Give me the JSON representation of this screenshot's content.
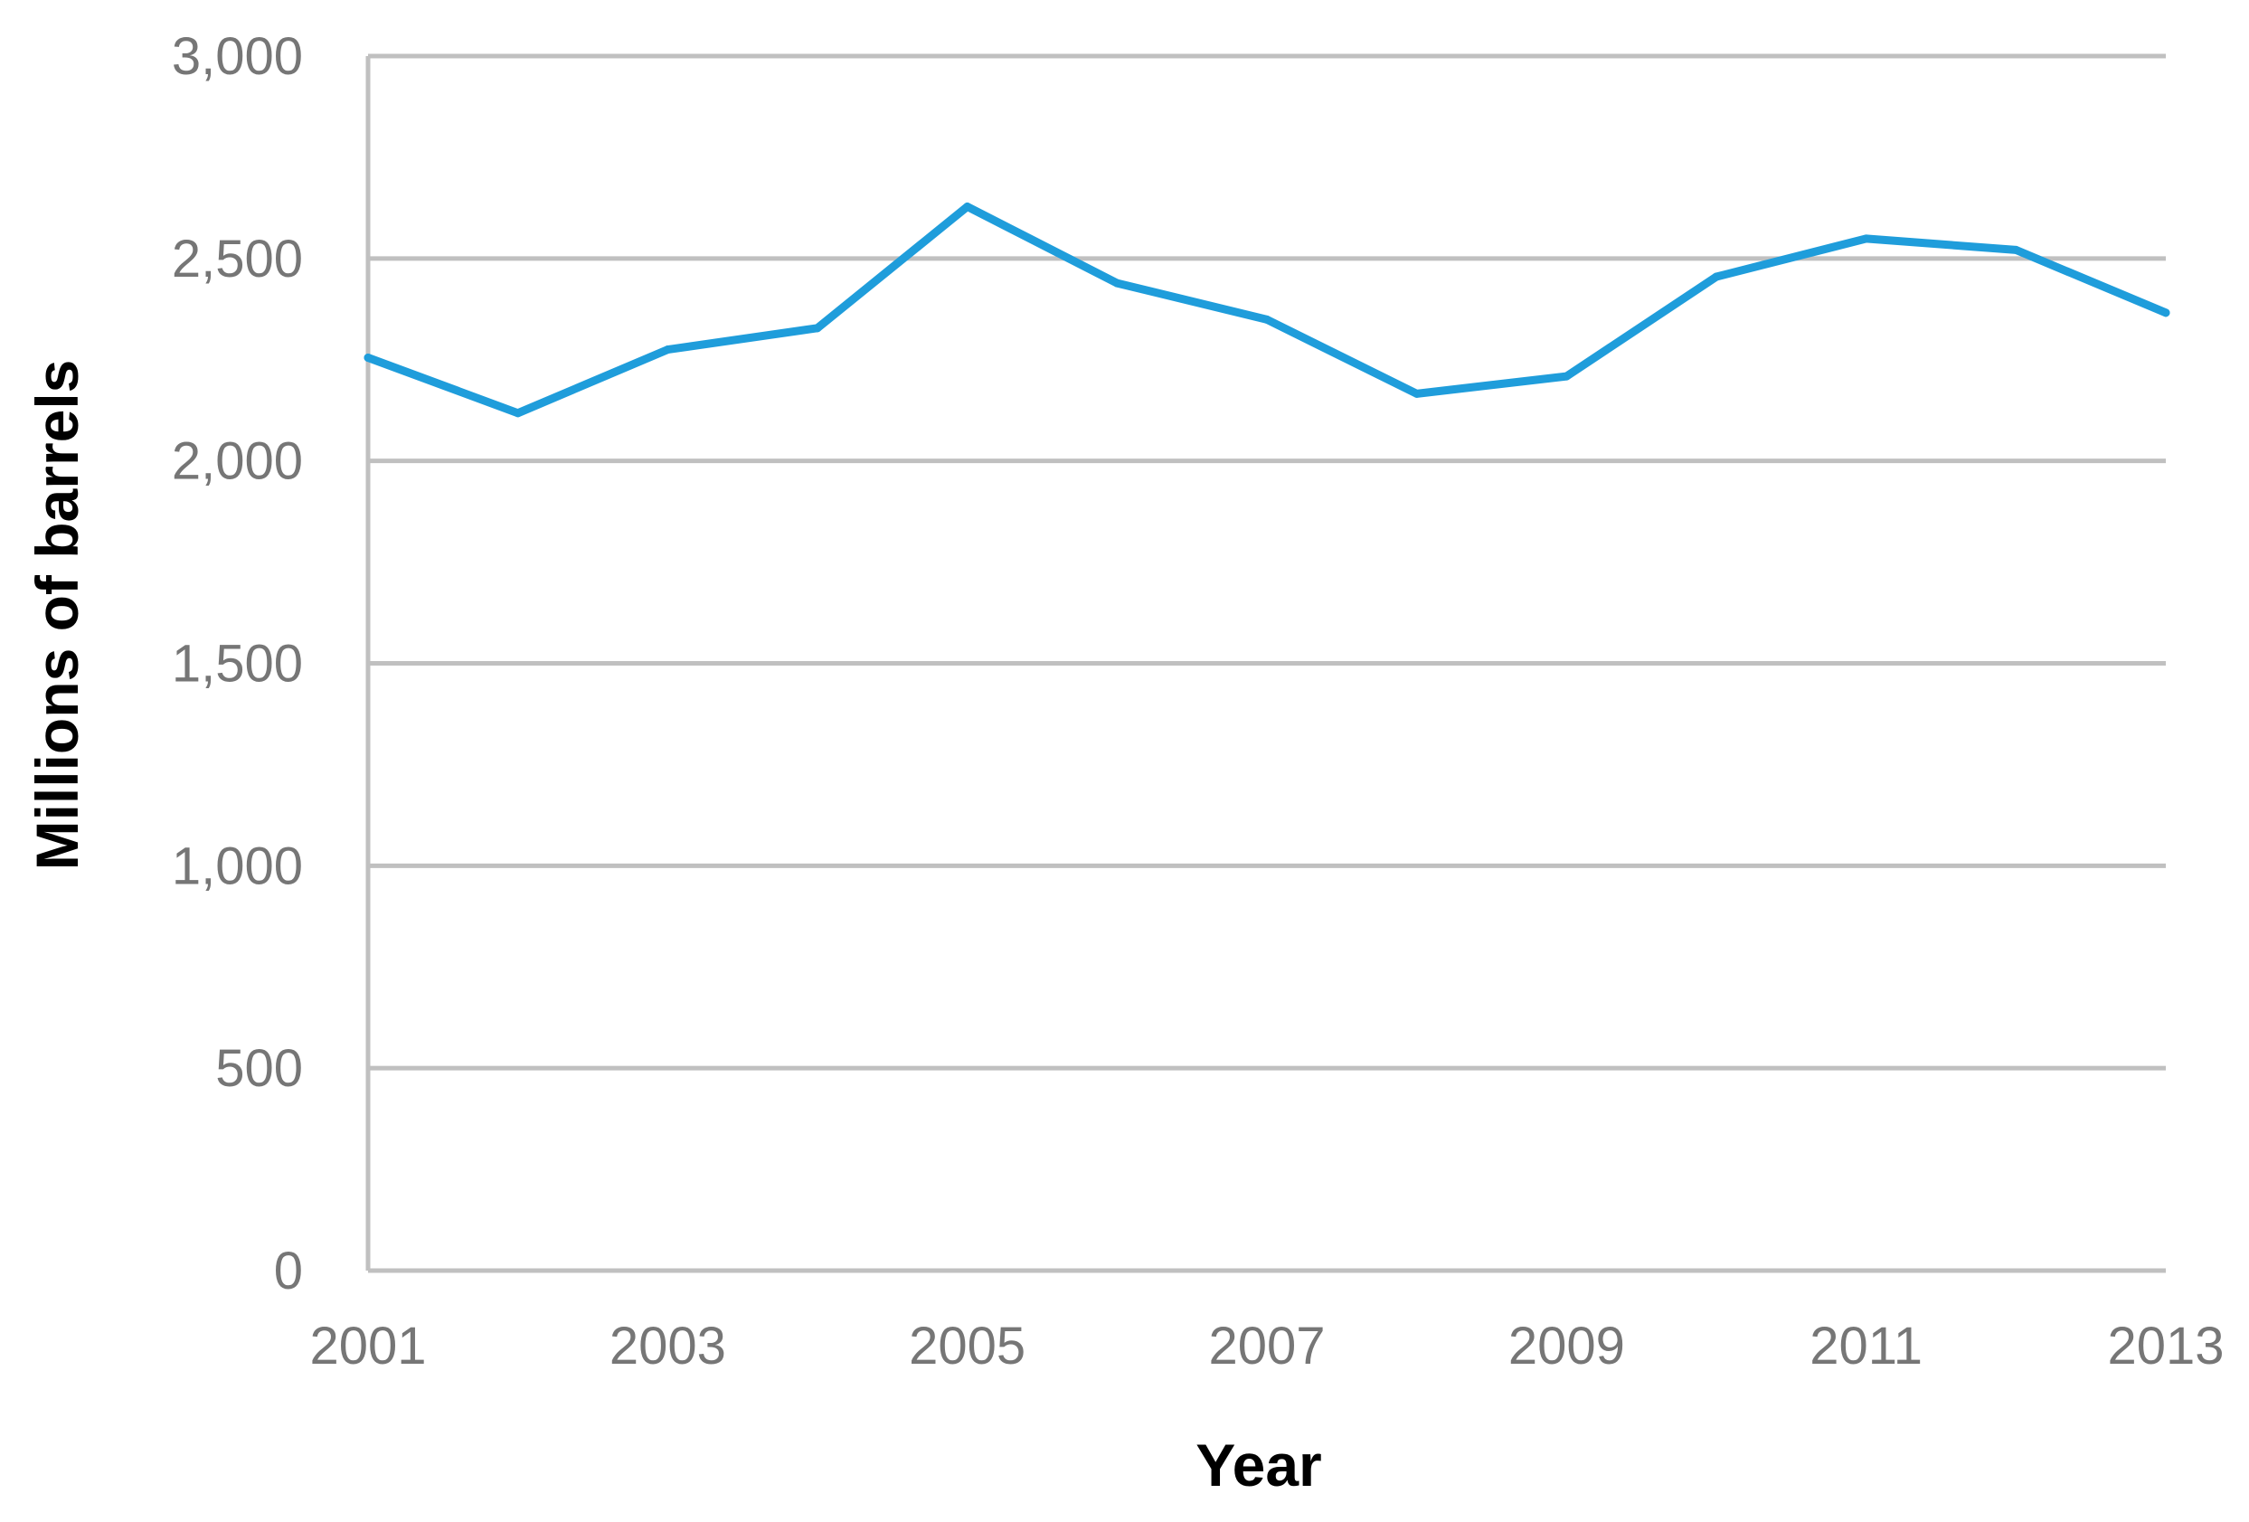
{
  "chart_data": {
    "type": "line",
    "title": "",
    "xlabel": "Year",
    "ylabel": "Millions of barrels",
    "x": [
      2001,
      2002,
      2003,
      2004,
      2005,
      2006,
      2007,
      2008,
      2009,
      2010,
      2011,
      2012,
      2013
    ],
    "x_tick_labels": [
      "2001",
      "2003",
      "2005",
      "2007",
      "2009",
      "2011",
      "2013"
    ],
    "y_tick_labels": [
      "0",
      "500",
      "1,000",
      "1,500",
      "2,000",
      "2,500",
      "3,000"
    ],
    "xlim": [
      2001,
      2013
    ],
    "ylim": [
      0,
      3000
    ],
    "grid": true,
    "legend": "none",
    "series": [
      {
        "color": "#1f9ddb",
        "values": [
          2255,
          2118,
          2275,
          2328,
          2628,
          2439,
          2349,
          2166,
          2209,
          2455,
          2549,
          2521,
          2366
        ]
      }
    ]
  }
}
